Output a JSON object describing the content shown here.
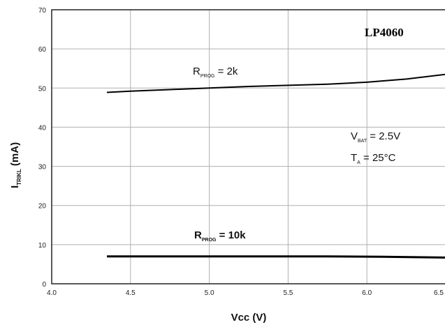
{
  "chart_data": {
    "type": "line",
    "title": "LP4060",
    "xlabel": "Vcc (V)",
    "ylabel": {
      "main": "I",
      "sub": "TRIKL",
      "rest": " (mA)"
    },
    "xlim": [
      4.0,
      6.5
    ],
    "ylim": [
      0,
      70
    ],
    "x_ticks": [
      "4.0",
      "4.5",
      "5.0",
      "5.5",
      "6.0",
      "6.5"
    ],
    "y_ticks": [
      "0",
      "10",
      "20",
      "30",
      "40",
      "50",
      "60",
      "70"
    ],
    "grid": true,
    "series": [
      {
        "name": "R PROG = 2k",
        "label": {
          "main": "R",
          "sub": "PROG",
          "rest": " = 2k"
        },
        "x": [
          4.35,
          4.5,
          4.75,
          5.0,
          5.25,
          5.5,
          5.75,
          6.0,
          6.25,
          6.5
        ],
        "y": [
          48.9,
          49.2,
          49.6,
          50.0,
          50.4,
          50.7,
          51.0,
          51.5,
          52.3,
          53.5
        ]
      },
      {
        "name": "R PROG = 10k",
        "label": {
          "main": "R",
          "sub": "PROG",
          "rest": " = 10k"
        },
        "x": [
          4.35,
          4.75,
          5.25,
          5.75,
          6.1,
          6.5
        ],
        "y": [
          7.0,
          7.0,
          7.0,
          7.0,
          6.9,
          6.7
        ]
      }
    ],
    "conditions": [
      {
        "main": "V",
        "sub": "BAT",
        "rest": " = 2.5V"
      },
      {
        "main": "T",
        "sub": "A",
        "rest": " = 25°C"
      }
    ]
  }
}
